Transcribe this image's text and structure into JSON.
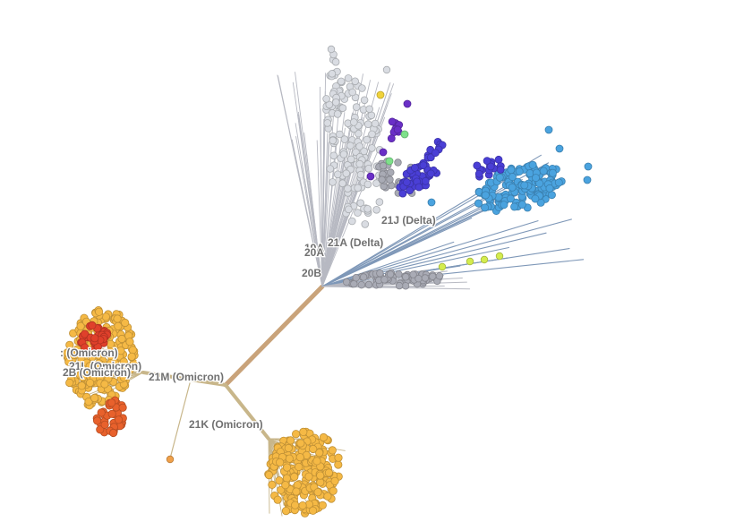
{
  "view": "radial",
  "colors": {
    "root_trunk": "#c9a37a",
    "omicron_trunk": "#c8b68a",
    "grey_branch": "#b7b9c2",
    "blue_branch": "#7f98b8",
    "grey_tip": "#a9abb5",
    "light_grey_tip": "#d9dce2",
    "delta_blue_tip": "#4aa3df",
    "delta_violet_tip": "#4a3fd6",
    "purple_tip": "#6a2fc7",
    "green_tip": "#7ee08a",
    "yellow_green_tip": "#d4ec4e",
    "yellow_tip": "#f0d23a",
    "omicron_orange_tip": "#f5b945",
    "red_tip": "#e0402b",
    "orange_red_tip": "#e8612c",
    "lone_orange_tip": "#f0a04a"
  },
  "clade_labels": [
    {
      "id": "19A",
      "text": "19A"
    },
    {
      "id": "20A",
      "text": "20A"
    },
    {
      "id": "21A",
      "text": "21A (Delta)"
    },
    {
      "id": "21J",
      "text": "21J (Delta)"
    },
    {
      "id": "20B",
      "text": "20B"
    },
    {
      "id": "21M",
      "text": "21M (Omicron)"
    },
    {
      "id": "21K",
      "text": "21K (Omicron)"
    },
    {
      "id": "21L",
      "text": "21L (Omicron)"
    },
    {
      "id": "22B",
      "text": "2B (Omicron)"
    },
    {
      "id": "22A",
      "text": ": (Omicron)"
    }
  ]
}
